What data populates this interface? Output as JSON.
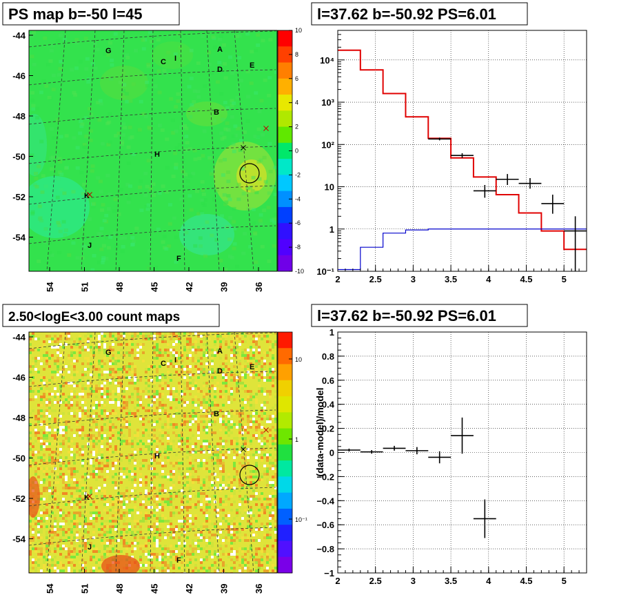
{
  "maps": {
    "top": {
      "title": "PS map b=-50 l=45",
      "palette_ticks": [
        "10",
        "8",
        "6",
        "4",
        "2",
        "0",
        "-2",
        "-4",
        "-6",
        "-8",
        "-10"
      ],
      "palette_values": [
        10,
        8,
        6,
        4,
        2,
        0,
        -2,
        -4,
        -6,
        -8,
        -10
      ]
    },
    "bottom": {
      "title": "2.50<logE<3.00 count maps",
      "palette_ticks": [
        "10",
        "1",
        "10⁻¹"
      ]
    },
    "y_ticks": [
      "-44",
      "-46",
      "-48",
      "-50",
      "-52",
      "-54"
    ],
    "x_ticks": [
      "54",
      "51",
      "48",
      "45",
      "42",
      "39",
      "36"
    ],
    "sources": [
      "G",
      "A",
      "C",
      "I",
      "D",
      "E",
      "B",
      "H",
      "K",
      "J",
      "F"
    ],
    "markers": {
      "candidate_circle": true,
      "crosses": 3
    }
  },
  "chart_data": [
    {
      "type": "line",
      "title": "l=37.62 b=-50.92 PS=6.01",
      "xlabel": "",
      "ylabel": "",
      "xlim": [
        2,
        5.3
      ],
      "ylim": [
        0.1,
        50000
      ],
      "yscale": "log",
      "grid": true,
      "x_ticks": [
        "2",
        "2.5",
        "3",
        "3.5",
        "4",
        "4.5",
        "5"
      ],
      "y_ticks": [
        "10⁻¹",
        "1",
        "10",
        "10²",
        "10³",
        "10⁴"
      ],
      "series": [
        {
          "color": "#e00000",
          "style": "step",
          "edges": [
            2.0,
            2.3,
            2.6,
            2.9,
            3.2,
            3.5,
            3.8,
            4.1,
            4.4,
            4.7,
            5.0,
            5.3
          ],
          "values": [
            17000,
            5800,
            1600,
            450,
            140,
            48,
            17,
            6.5,
            2.4,
            0.9,
            0.33
          ]
        },
        {
          "color": "#0000cc",
          "style": "step",
          "edges": [
            2.0,
            2.3,
            2.6,
            2.9,
            3.2,
            3.5,
            3.8,
            4.1,
            4.4,
            4.7,
            5.0,
            5.3
          ],
          "values": [
            0.11,
            0.37,
            0.8,
            0.95,
            1.0,
            1.0,
            1.0,
            1.0,
            1.0,
            1.0,
            1.0
          ]
        },
        {
          "color": "#000000",
          "style": "errorbar",
          "x": [
            3.35,
            3.65,
            3.95,
            4.25,
            4.55,
            4.85,
            5.15
          ],
          "xerr": [
            0.15,
            0.15,
            0.15,
            0.15,
            0.15,
            0.15,
            0.15
          ],
          "y": [
            135,
            55,
            8,
            15,
            12,
            4,
            0.9
          ],
          "ylo": [
            125,
            48,
            5.5,
            11,
            9,
            2.3,
            0.1
          ],
          "yhi": [
            145,
            62,
            11,
            20,
            16,
            6.5,
            2.0
          ]
        }
      ]
    },
    {
      "type": "scatter",
      "title": "l=37.62 b=-50.92 PS=6.01",
      "xlabel": "",
      "ylabel": "(data-model)/model",
      "xlim": [
        2,
        5.3
      ],
      "ylim": [
        -1,
        1
      ],
      "grid": true,
      "x_ticks": [
        "2",
        "2.5",
        "3",
        "3.5",
        "4",
        "4.5",
        "5"
      ],
      "y_ticks": [
        "1",
        "0.8",
        "0.6",
        "0.4",
        "0.2",
        "0",
        "−0.2",
        "−0.4",
        "−0.6",
        "−0.8",
        "−1"
      ],
      "x": [
        2.15,
        2.45,
        2.75,
        3.05,
        3.35,
        3.65,
        3.95
      ],
      "xerr": [
        0.15,
        0.15,
        0.15,
        0.15,
        0.15,
        0.15,
        0.15
      ],
      "y": [
        0.02,
        0.005,
        0.035,
        0.015,
        -0.04,
        0.14,
        -0.55
      ],
      "yerr": [
        0.012,
        0.015,
        0.02,
        0.03,
        0.05,
        0.15,
        0.16
      ]
    }
  ]
}
